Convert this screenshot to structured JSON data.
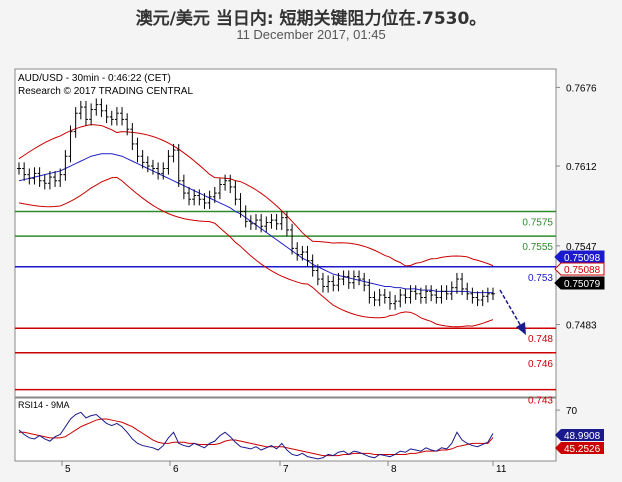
{
  "header": {
    "title": "澳元/美元 当日内: 短期关键阻力位在.7530。",
    "date": "11 December 2017, 01:45"
  },
  "chart_data": {
    "type": "candlestick",
    "info_line1": "AUD/USD - 30min - 0:46:22 (CET)",
    "info_line2": "Research © 2017 TRADING CENTRAL",
    "ylim": [
      0.7424,
      0.7691
    ],
    "y_ticks": [
      "0.7676",
      "0.7612",
      "0.7547",
      "0.7483"
    ],
    "x_ticks": [
      "5",
      "6",
      "7",
      "8",
      "11"
    ],
    "levels": [
      {
        "label": "0.7575",
        "value": 0.7575,
        "color": "#2e8b2e"
      },
      {
        "label": "0.7555",
        "value": 0.7555,
        "color": "#2e8b2e"
      },
      {
        "label": "0.753",
        "value": 0.753,
        "color": "#1a1acc"
      },
      {
        "label": "0.748",
        "value": 0.748,
        "color": "#cc0000"
      },
      {
        "label": "0.746",
        "value": 0.746,
        "color": "#cc0000"
      },
      {
        "label": "0.743",
        "value": 0.743,
        "color": "#cc0000"
      }
    ],
    "price_tags": [
      {
        "label": "0.75098",
        "value": 0.75098,
        "bg": "#1a1acc",
        "fg": "#ffffff"
      },
      {
        "label": "0.75088",
        "value": 0.75088,
        "bg": "#ffffff",
        "fg": "#cc0000"
      },
      {
        "label": "0.75079",
        "value": 0.75079,
        "bg": "#000000",
        "fg": "#ffffff"
      }
    ],
    "close": [
      0.761,
      0.7605,
      0.7602,
      0.7606,
      0.76,
      0.7598,
      0.7603,
      0.76,
      0.7605,
      0.762,
      0.764,
      0.7655,
      0.766,
      0.765,
      0.7658,
      0.7662,
      0.7657,
      0.7652,
      0.765,
      0.7655,
      0.765,
      0.7642,
      0.763,
      0.762,
      0.7615,
      0.7612,
      0.761,
      0.7606,
      0.761,
      0.762,
      0.7625,
      0.76,
      0.759,
      0.7585,
      0.7588,
      0.7585,
      0.7582,
      0.7587,
      0.759,
      0.7597,
      0.76,
      0.7595,
      0.7585,
      0.7575,
      0.7567,
      0.7565,
      0.7568,
      0.7563,
      0.7566,
      0.7568,
      0.7565,
      0.757,
      0.756,
      0.7545,
      0.754,
      0.7542,
      0.7535,
      0.7527,
      0.752,
      0.7514,
      0.7518,
      0.7515,
      0.752,
      0.7522,
      0.7517,
      0.7522,
      0.752,
      0.7515,
      0.7505,
      0.7503,
      0.7507,
      0.7505,
      0.75,
      0.7502,
      0.7507,
      0.7505,
      0.751,
      0.7508,
      0.7505,
      0.751,
      0.7507,
      0.7505,
      0.751,
      0.7508,
      0.7513,
      0.752,
      0.7512,
      0.7508,
      0.7505,
      0.7503,
      0.7506,
      0.7508,
      0.7508
    ],
    "ma_blue": {
      "color": "#2222cc",
      "values": [
        0.76,
        0.7601,
        0.7602,
        0.7603,
        0.7604,
        0.7605,
        0.7606,
        0.7607,
        0.7608,
        0.761,
        0.7612,
        0.7614,
        0.7616,
        0.7618,
        0.762,
        0.7621,
        0.7622,
        0.7622,
        0.7622,
        0.7621,
        0.762,
        0.7618,
        0.7616,
        0.7614,
        0.7612,
        0.761,
        0.7608,
        0.7606,
        0.7604,
        0.7602,
        0.76,
        0.7598,
        0.7596,
        0.7594,
        0.7592,
        0.759,
        0.7588,
        0.7586,
        0.7584,
        0.7582,
        0.758,
        0.7578,
        0.7575,
        0.7573,
        0.757,
        0.7567,
        0.7564,
        0.7561,
        0.7558,
        0.7555,
        0.7552,
        0.7549,
        0.7546,
        0.7543,
        0.754,
        0.7537,
        0.7535,
        0.7532,
        0.753,
        0.7528,
        0.7526,
        0.7524,
        0.7523,
        0.7522,
        0.7521,
        0.752,
        0.7519,
        0.7518,
        0.7517,
        0.7516,
        0.7515,
        0.7514,
        0.7514,
        0.7513,
        0.7513,
        0.7512,
        0.7512,
        0.7512,
        0.7511,
        0.7511,
        0.7511,
        0.751,
        0.751,
        0.751,
        0.751,
        0.751,
        0.751,
        0.751,
        0.7509,
        0.7509,
        0.7509,
        0.7509,
        0.7509
      ]
    },
    "band_width": 0.0018,
    "band_color": "#cc0000",
    "rsi": {
      "label": "RSI14 - 9MA",
      "ylim": [
        25,
        80
      ],
      "tick": "70",
      "values": [
        52,
        48,
        45,
        44,
        47,
        44,
        42,
        46,
        48,
        55,
        62,
        66,
        68,
        63,
        65,
        66,
        62,
        58,
        56,
        58,
        55,
        50,
        44,
        40,
        38,
        37,
        36,
        34,
        38,
        45,
        50,
        40,
        38,
        37,
        40,
        38,
        36,
        40,
        42,
        47,
        50,
        46,
        41,
        37,
        36,
        35,
        37,
        34,
        36,
        38,
        35,
        40,
        34,
        30,
        29,
        31,
        28,
        27,
        26,
        27,
        30,
        29,
        32,
        33,
        30,
        33,
        32,
        30,
        28,
        27,
        30,
        29,
        28,
        30,
        33,
        32,
        35,
        34,
        33,
        36,
        34,
        33,
        36,
        35,
        40,
        50,
        43,
        40,
        38,
        37,
        39,
        41,
        48.99
      ],
      "ma_values": [
        50,
        50,
        49,
        48,
        47,
        46,
        45,
        45,
        45,
        46,
        49,
        52,
        55,
        57,
        59,
        61,
        62,
        62,
        61,
        60,
        59,
        57,
        55,
        52,
        49,
        46,
        43,
        41,
        40,
        40,
        41,
        41,
        41,
        40,
        40,
        39,
        39,
        39,
        39,
        40,
        42,
        43,
        43,
        42,
        41,
        40,
        39,
        38,
        37,
        37,
        37,
        37,
        36,
        35,
        34,
        33,
        32,
        31,
        30,
        29,
        29,
        29,
        29,
        30,
        30,
        31,
        31,
        31,
        31,
        30,
        30,
        30,
        30,
        30,
        30,
        30,
        31,
        31,
        32,
        33,
        33,
        33,
        34,
        34,
        35,
        37,
        38,
        39,
        40,
        40,
        40,
        40,
        45.25
      ],
      "tags": [
        {
          "label": "48.9908",
          "value": 48.99,
          "bg": "#1a1a8c",
          "fg": "#ffffff"
        },
        {
          "label": "45.2526",
          "value": 45.25,
          "bg": "#cc0000",
          "fg": "#ffffff"
        }
      ]
    }
  }
}
